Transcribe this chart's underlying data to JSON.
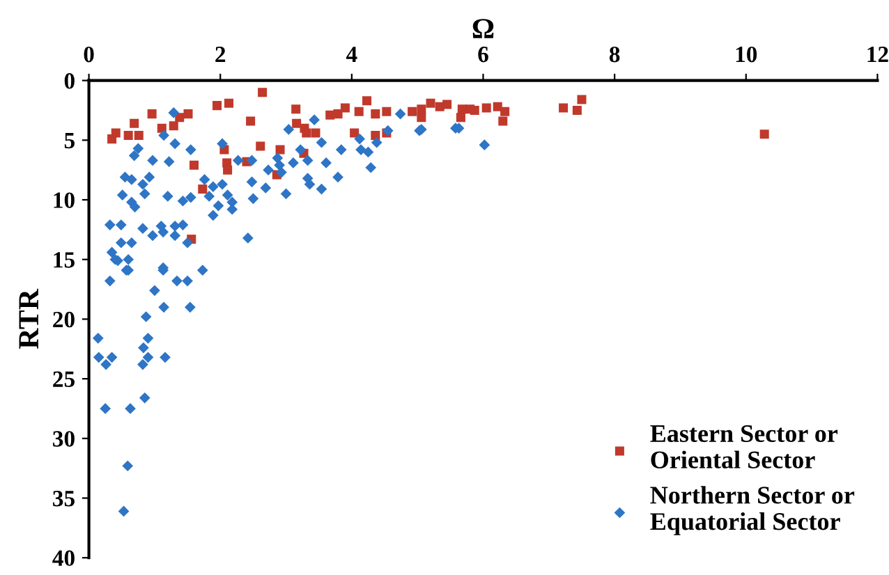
{
  "chart_data": {
    "type": "scatter",
    "xlabel": "Ω",
    "ylabel": "RTR",
    "xlim": [
      0,
      12
    ],
    "ylim": [
      40,
      0
    ],
    "xticks": [
      0,
      2,
      4,
      6,
      8,
      10,
      12
    ],
    "yticks": [
      0,
      5,
      10,
      15,
      20,
      25,
      30,
      35,
      40
    ],
    "grid": false,
    "legend": "bottom right",
    "series": [
      {
        "name": "Eastern Sector or\nOriental Sector",
        "color": "#c0392b",
        "marker": "square",
        "x": [
          0.35,
          0.41,
          0.6,
          0.69,
          0.76,
          0.96,
          1.11,
          1.29,
          1.38,
          1.51,
          1.6,
          1.73,
          1.56,
          1.95,
          2.13,
          2.06,
          2.1,
          2.11,
          2.64,
          2.46,
          2.61,
          2.4,
          2.86,
          2.91,
          3.15,
          3.16,
          3.28,
          3.31,
          3.45,
          3.27,
          3.67,
          3.79,
          3.9,
          4.04,
          4.11,
          4.23,
          4.36,
          4.36,
          4.53,
          4.53,
          4.92,
          5.06,
          5.2,
          5.06,
          5.34,
          5.45,
          5.68,
          5.8,
          5.66,
          5.87,
          6.05,
          6.22,
          6.33,
          6.3,
          7.22,
          7.43,
          7.5,
          10.28
        ],
        "values": [
          4.9,
          4.4,
          4.6,
          3.6,
          4.6,
          2.8,
          4.0,
          3.8,
          3.1,
          2.8,
          7.1,
          9.1,
          13.3,
          2.1,
          1.9,
          5.8,
          6.9,
          7.5,
          1.0,
          3.4,
          5.5,
          6.8,
          7.9,
          5.8,
          2.4,
          3.6,
          4.0,
          4.4,
          4.4,
          6.1,
          2.9,
          2.8,
          2.3,
          4.4,
          2.6,
          1.7,
          2.8,
          4.6,
          2.6,
          4.4,
          2.6,
          2.4,
          1.9,
          3.1,
          2.2,
          2.0,
          2.4,
          2.4,
          3.1,
          2.5,
          2.3,
          2.2,
          2.6,
          3.4,
          2.3,
          2.5,
          1.6,
          4.5
        ]
      },
      {
        "name": "Northern Sector or\nEquatorial Sector",
        "color": "#2e75c6",
        "marker": "diamond",
        "x": [
          1.29,
          1.14,
          1.31,
          1.55,
          0.75,
          0.69,
          0.97,
          1.22,
          0.55,
          0.65,
          0.82,
          0.92,
          0.85,
          0.51,
          0.65,
          0.7,
          1.2,
          1.43,
          1.55,
          1.76,
          1.89,
          2.03,
          1.83,
          1.97,
          2.11,
          2.18,
          2.18,
          1.89,
          2.03,
          2.27,
          2.48,
          2.48,
          2.5,
          2.69,
          2.73,
          2.87,
          2.9,
          2.93,
          3.0,
          3.04,
          3.11,
          3.33,
          3.22,
          3.33,
          3.36,
          3.43,
          3.54,
          3.61,
          3.54,
          3.79,
          3.84,
          4.12,
          4.14,
          4.25,
          4.29,
          4.38,
          4.55,
          4.74,
          5.03,
          5.58,
          2.42,
          0.32,
          0.49,
          0.35,
          0.49,
          0.65,
          0.82,
          0.97,
          1.1,
          1.13,
          1.31,
          1.31,
          1.43,
          1.5,
          1.13,
          0.44,
          0.6,
          5.06,
          5.63,
          6.02,
          0.14,
          0.15,
          0.26,
          0.35,
          0.25,
          0.63,
          0.32,
          0.57,
          0.6,
          0.4,
          0.87,
          1.0,
          1.14,
          1.13,
          1.34,
          1.5,
          1.73,
          1.54,
          0.9,
          0.83,
          0.9,
          0.82,
          1.16,
          0.85,
          0.59,
          0.53
        ],
        "values": [
          2.7,
          4.6,
          5.3,
          5.8,
          5.7,
          6.3,
          6.7,
          6.8,
          8.1,
          8.3,
          8.7,
          8.1,
          9.5,
          9.6,
          10.2,
          10.6,
          9.7,
          10.1,
          9.8,
          8.3,
          8.9,
          8.7,
          9.7,
          10.5,
          9.6,
          10.2,
          10.8,
          11.3,
          5.3,
          6.7,
          6.7,
          8.5,
          9.9,
          9.0,
          7.5,
          6.5,
          7.1,
          7.7,
          9.5,
          4.1,
          6.9,
          6.7,
          5.8,
          8.2,
          8.7,
          3.3,
          5.2,
          6.9,
          9.1,
          8.1,
          5.8,
          4.9,
          5.8,
          6.0,
          7.3,
          5.2,
          4.2,
          2.8,
          4.2,
          4.0,
          13.2,
          12.1,
          12.1,
          14.4,
          13.6,
          13.6,
          12.4,
          13.0,
          12.2,
          12.7,
          12.2,
          13.0,
          12.1,
          13.6,
          15.7,
          15.1,
          15.9,
          4.1,
          4.0,
          5.4,
          21.6,
          23.2,
          23.8,
          23.2,
          27.5,
          27.5,
          16.8,
          15.9,
          15.0,
          15.0,
          19.8,
          17.6,
          19.0,
          15.9,
          16.8,
          16.8,
          15.9,
          19.0,
          21.6,
          22.4,
          23.2,
          23.8,
          23.2,
          26.6,
          32.3,
          36.1
        ]
      }
    ]
  }
}
